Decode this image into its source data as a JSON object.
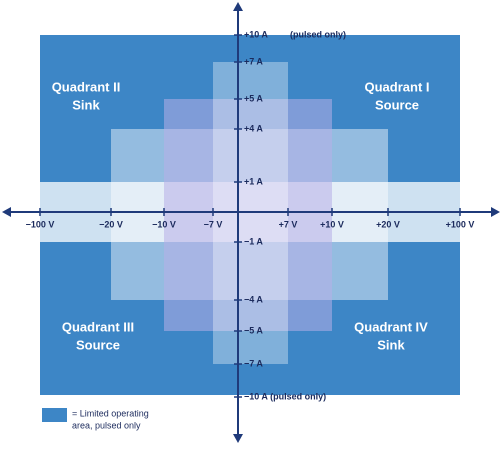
{
  "quadrants": [
    {
      "name": "Quadrant II",
      "mode": "Sink"
    },
    {
      "name": "Quadrant I",
      "mode": "Source"
    },
    {
      "name": "Quadrant III",
      "mode": "Source"
    },
    {
      "name": "Quadrant IV",
      "mode": "Sink"
    }
  ],
  "current_labels": [
    "+10 A",
    "(pulsed only)",
    "+7 A",
    "+5 A",
    "+4 A",
    "+1 A",
    "−1 A",
    "−4 A",
    "−5 A",
    "−7 A",
    "−10 A (pulsed only)"
  ],
  "voltage_labels": [
    "−100 V",
    "−20 V",
    "−10 V",
    "−7 V",
    "+7 V",
    "+10 V",
    "+20 V",
    "+100 V"
  ],
  "legend": {
    "line1": "= Limited operating",
    "line2": "area, pulsed only"
  }
}
